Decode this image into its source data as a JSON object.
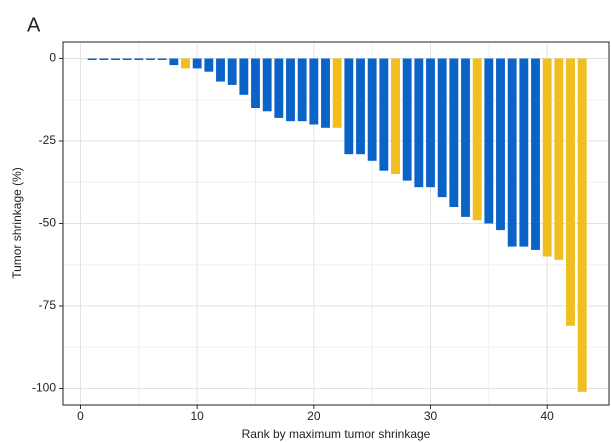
{
  "chart_data": {
    "type": "bar",
    "panel_label": "A",
    "x_label": "Rank by maximum tumor shrinkage",
    "y_label": "Tumor shrinkage (%)",
    "x": [
      1,
      2,
      3,
      4,
      5,
      6,
      7,
      8,
      9,
      10,
      11,
      12,
      13,
      14,
      15,
      16,
      17,
      18,
      19,
      20,
      21,
      22,
      23,
      24,
      25,
      26,
      27,
      28,
      29,
      30,
      31,
      32,
      33,
      34,
      35,
      36,
      37,
      38,
      39,
      40,
      41,
      42,
      43
    ],
    "values": [
      0,
      0,
      0,
      0,
      0,
      0,
      0,
      -2,
      -3,
      -3,
      -4,
      -7,
      -8,
      -11,
      -15,
      -16,
      -18,
      -19,
      -19,
      -20,
      -21,
      -21,
      -29,
      -29,
      -31,
      -34,
      -35,
      -37,
      -39,
      -39,
      -42,
      -45,
      -48,
      -49,
      -50,
      -52,
      -57,
      -57,
      -58,
      -60,
      -61,
      -81,
      -101
    ],
    "colors": [
      "#0a64c8",
      "#0a64c8",
      "#0a64c8",
      "#0a64c8",
      "#0a64c8",
      "#0a64c8",
      "#0a64c8",
      "#0a64c8",
      "#f0be1e",
      "#0a64c8",
      "#0a64c8",
      "#0a64c8",
      "#0a64c8",
      "#0a64c8",
      "#0a64c8",
      "#0a64c8",
      "#0a64c8",
      "#0a64c8",
      "#0a64c8",
      "#0a64c8",
      "#0a64c8",
      "#f0be1e",
      "#0a64c8",
      "#0a64c8",
      "#0a64c8",
      "#0a64c8",
      "#f0be1e",
      "#0a64c8",
      "#0a64c8",
      "#0a64c8",
      "#0a64c8",
      "#0a64c8",
      "#0a64c8",
      "#f0be1e",
      "#0a64c8",
      "#0a64c8",
      "#0a64c8",
      "#0a64c8",
      "#0a64c8",
      "#f0be1e",
      "#f0be1e",
      "#f0be1e",
      "#f0be1e"
    ],
    "xlim": [
      -1.5,
      45.3
    ],
    "xticks": [
      0,
      10,
      20,
      30,
      40
    ],
    "ylim": [
      -105,
      5
    ],
    "yticks": [
      0,
      -25,
      -50,
      -75,
      -100
    ],
    "grid": true
  }
}
